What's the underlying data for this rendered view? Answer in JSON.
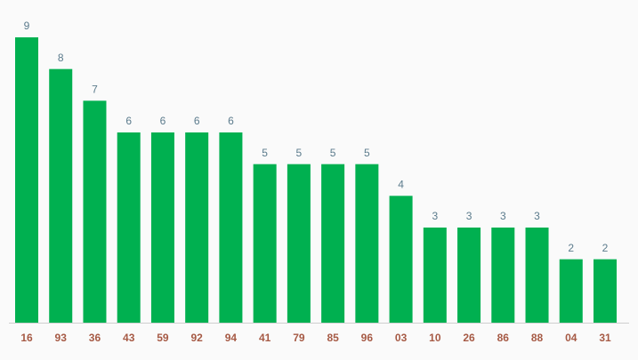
{
  "chart_data": {
    "type": "bar",
    "categories": [
      "16",
      "93",
      "36",
      "43",
      "59",
      "92",
      "94",
      "41",
      "79",
      "85",
      "96",
      "03",
      "10",
      "26",
      "86",
      "88",
      "04",
      "31"
    ],
    "values": [
      9,
      8,
      7,
      6,
      6,
      6,
      6,
      5,
      5,
      5,
      5,
      4,
      3,
      3,
      3,
      3,
      2,
      2
    ],
    "color": "#00b050"
  }
}
